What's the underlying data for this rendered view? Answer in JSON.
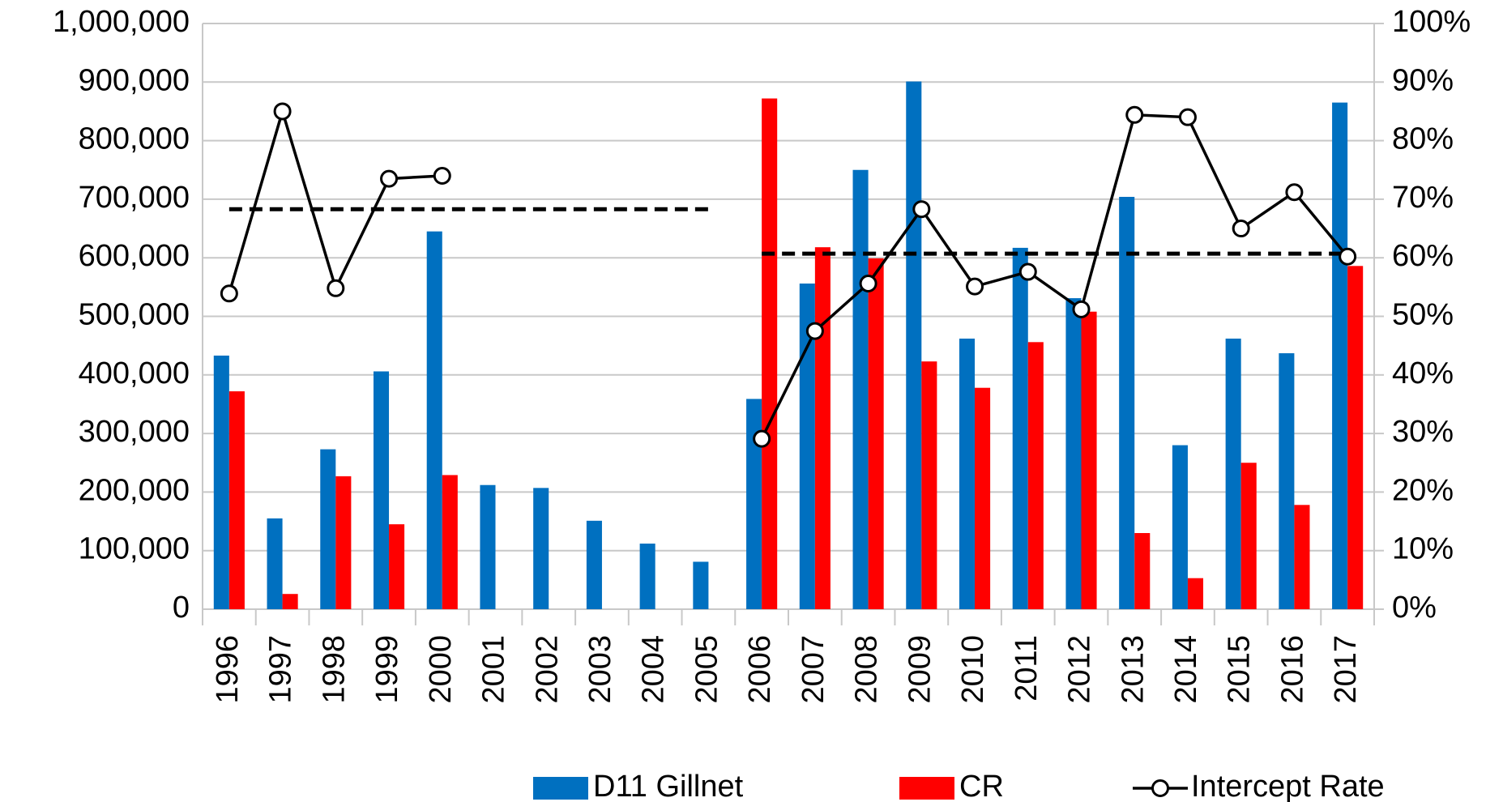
{
  "chart_data": {
    "type": "bar",
    "categories": [
      "1996",
      "1997",
      "1998",
      "1999",
      "2000",
      "2001",
      "2002",
      "2003",
      "2004",
      "2005",
      "2006",
      "2007",
      "2008",
      "2009",
      "2010",
      "2011",
      "2012",
      "2013",
      "2014",
      "2015",
      "2016",
      "2017"
    ],
    "series": [
      {
        "name": "D11 Gillnet",
        "color": "#0070c0",
        "type": "bar",
        "values": [
          433000,
          155000,
          273000,
          406000,
          645000,
          212000,
          207000,
          151000,
          112000,
          81000,
          359000,
          556000,
          750000,
          901000,
          462000,
          617000,
          531000,
          704000,
          280000,
          462000,
          437000,
          865000
        ]
      },
      {
        "name": "CR",
        "color": "#ff0000",
        "type": "bar",
        "values": [
          372000,
          26000,
          227000,
          145000,
          229000,
          null,
          null,
          null,
          null,
          null,
          872000,
          618000,
          599000,
          423000,
          378000,
          456000,
          508000,
          130000,
          53000,
          250000,
          178000,
          586000
        ]
      },
      {
        "name": "Intercept Rate",
        "color": "#000000",
        "type": "line",
        "axis": "y2",
        "values": [
          53.9,
          85.0,
          54.8,
          73.5,
          74.0,
          null,
          null,
          null,
          null,
          null,
          29.1,
          47.5,
          55.6,
          68.3,
          55.1,
          57.6,
          51.2,
          84.4,
          84.0,
          65.0,
          71.2,
          60.2
        ]
      }
    ],
    "reference_lines": [
      {
        "value": 68.3,
        "x": [
          "1996",
          "2005"
        ],
        "axis": "y2",
        "color": "#000000",
        "style": "dashed"
      },
      {
        "value": 60.7,
        "x": [
          "2006",
          "2017"
        ],
        "axis": "y2",
        "color": "#000000",
        "style": "dashed"
      }
    ],
    "ylim": [
      0,
      1000000
    ],
    "yticks": [
      0,
      {
        "value": 100000,
        "label": "100,000"
      },
      {
        "value": 200000,
        "label": "200,000"
      },
      {
        "value": 300000,
        "label": "300,000"
      },
      {
        "value": 400000,
        "label": "400,000"
      },
      {
        "value": 500000,
        "label": "500,000"
      },
      {
        "value": 600000,
        "label": "600,000"
      },
      {
        "value": 700000,
        "label": "700,000"
      },
      {
        "value": 800000,
        "label": "800,000"
      },
      {
        "value": 900000,
        "label": "900,000"
      },
      {
        "value": 1000000,
        "label": "1,000,000"
      }
    ],
    "y2lim": [
      0,
      100
    ],
    "y2ticks": [
      {
        "value": 0,
        "label": "0%"
      },
      {
        "value": 10,
        "label": "10%"
      },
      {
        "value": 20,
        "label": "20%"
      },
      {
        "value": 30,
        "label": "30%"
      },
      {
        "value": 40,
        "label": "40%"
      },
      {
        "value": 50,
        "label": "50%"
      },
      {
        "value": 60,
        "label": "60%"
      },
      {
        "value": 70,
        "label": "70%"
      },
      {
        "value": 80,
        "label": "80%"
      },
      {
        "value": 90,
        "label": "90%"
      },
      {
        "value": 100,
        "label": "100%"
      }
    ],
    "grid": true,
    "legend": "bottom"
  }
}
